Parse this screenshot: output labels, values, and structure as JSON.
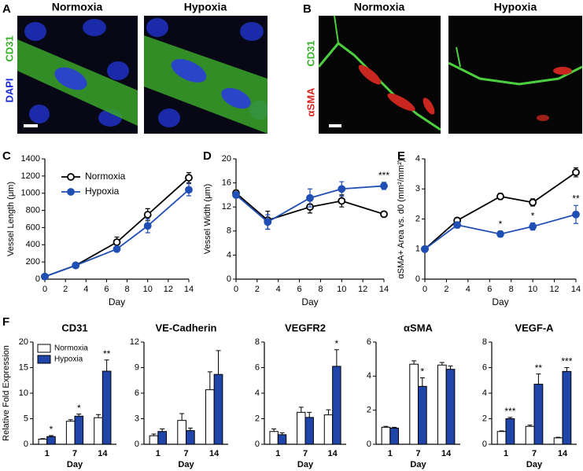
{
  "figure": {
    "letters": [
      "A",
      "B",
      "C",
      "D",
      "E",
      "F"
    ],
    "panel_a": {
      "titles": [
        "Normoxia",
        "Hypoxia"
      ],
      "stains": [
        "DAPI",
        "CD31"
      ]
    },
    "panel_b": {
      "titles": [
        "Normoxia",
        "Hypoxia"
      ],
      "stains": [
        "αSMA",
        "CD31"
      ]
    }
  },
  "chart_data": [
    {
      "type": "line",
      "x": [
        0,
        3,
        7,
        10,
        14
      ],
      "xlim": [
        0,
        14
      ],
      "xticks": [
        0,
        2,
        4,
        6,
        8,
        10,
        12,
        14
      ],
      "ylim": [
        0,
        1400
      ],
      "yticks": [
        0,
        200,
        400,
        600,
        800,
        1000,
        1200,
        1400
      ],
      "xlabel": "Day",
      "ylabel": "Vessel Length (μm)",
      "legend": "upper left",
      "series": [
        {
          "name": "Normoxia",
          "color": "#000000",
          "values": [
            30,
            160,
            430,
            750,
            1180
          ],
          "errors": [
            10,
            15,
            60,
            70,
            60
          ]
        },
        {
          "name": "Hypoxia",
          "color": "#1f4fb4",
          "values": [
            30,
            160,
            350,
            620,
            1040
          ],
          "errors": [
            10,
            15,
            30,
            80,
            70
          ]
        }
      ]
    },
    {
      "type": "line",
      "x": [
        0,
        3,
        7,
        10,
        14
      ],
      "xlim": [
        0,
        14
      ],
      "xticks": [
        0,
        2,
        4,
        6,
        8,
        10,
        12,
        14
      ],
      "ylim": [
        0,
        20
      ],
      "yticks": [
        0,
        4,
        8,
        12,
        16,
        20
      ],
      "xlabel": "Day",
      "ylabel": "Vessel Width (μm)",
      "annotations": [
        null,
        null,
        null,
        null,
        "***"
      ],
      "series": [
        {
          "color": "#000000",
          "values": [
            14.3,
            9.8,
            12,
            13,
            10.8
          ],
          "errors": [
            0.5,
            1.5,
            1.0,
            1.0,
            0.4
          ]
        },
        {
          "color": "#1f4fb4",
          "values": [
            14,
            9.5,
            13.5,
            15,
            15.5
          ],
          "errors": [
            0.5,
            1.2,
            1.5,
            1.2,
            0.6
          ]
        }
      ]
    },
    {
      "type": "line",
      "x": [
        0,
        3,
        7,
        10,
        14
      ],
      "xlim": [
        0,
        14
      ],
      "xticks": [
        0,
        2,
        4,
        6,
        8,
        10,
        12,
        14
      ],
      "ylim": [
        0,
        4
      ],
      "yticks": [
        0,
        1,
        2,
        3,
        4
      ],
      "xlabel": "Day",
      "ylabel": "αSMA+ Area vs. d0 (mm²/mm²)",
      "annotations": [
        null,
        null,
        "*",
        "*",
        "**"
      ],
      "series": [
        {
          "color": "#000000",
          "values": [
            1,
            1.95,
            2.75,
            2.55,
            3.55
          ],
          "errors": [
            0.05,
            0.05,
            0.1,
            0.12,
            0.15
          ]
        },
        {
          "color": "#1f4fb4",
          "values": [
            1,
            1.8,
            1.5,
            1.75,
            2.15
          ],
          "errors": [
            0.05,
            0.1,
            0.1,
            0.12,
            0.3
          ]
        }
      ]
    },
    {
      "type": "bar",
      "title": "CD31",
      "categories": [
        "1",
        "7",
        "14"
      ],
      "xlabel": "Day",
      "ylabel": "Relative Fold Expression",
      "legend": "upper left",
      "ylim": [
        0,
        20
      ],
      "yticks": [
        0,
        5,
        10,
        15,
        20
      ],
      "annotations": [
        "*",
        "*",
        "**"
      ],
      "series": [
        {
          "name": "Normoxia",
          "color": "#ffffff",
          "values": [
            1,
            4.5,
            5.2
          ],
          "errors": [
            0.1,
            0.3,
            0.6
          ]
        },
        {
          "name": "Hypoxia",
          "color": "#1f45a8",
          "values": [
            1.5,
            5.5,
            14.3
          ],
          "errors": [
            0.2,
            0.4,
            2.2
          ]
        }
      ]
    },
    {
      "type": "bar",
      "title": "VE-Cadherin",
      "categories": [
        "1",
        "7",
        "14"
      ],
      "xlabel": "Day",
      "ylim": [
        0,
        12
      ],
      "yticks": [
        0,
        3,
        6,
        9,
        12
      ],
      "series": [
        {
          "color": "#ffffff",
          "values": [
            1,
            2.8,
            6.4
          ],
          "errors": [
            0.2,
            0.8,
            2.1
          ]
        },
        {
          "color": "#1f45a8",
          "values": [
            1.5,
            1.6,
            8.2
          ],
          "errors": [
            0.3,
            0.3,
            2.8
          ]
        }
      ]
    },
    {
      "type": "bar",
      "title": "VEGFR2",
      "categories": [
        "1",
        "7",
        "14"
      ],
      "xlabel": "Day",
      "ylim": [
        0,
        8
      ],
      "yticks": [
        0,
        2,
        4,
        6,
        8
      ],
      "annotations": [
        null,
        null,
        "*"
      ],
      "series": [
        {
          "color": "#ffffff",
          "values": [
            1,
            2.5,
            2.3
          ],
          "errors": [
            0.2,
            0.4,
            0.4
          ]
        },
        {
          "color": "#1f45a8",
          "values": [
            0.75,
            2.1,
            6.1
          ],
          "errors": [
            0.15,
            0.4,
            1.3
          ]
        }
      ]
    },
    {
      "type": "bar",
      "title": "αSMA",
      "categories": [
        "1",
        "7",
        "14"
      ],
      "xlabel": "Day",
      "ylim": [
        0,
        6
      ],
      "yticks": [
        0,
        2,
        4,
        6
      ],
      "annotations": [
        null,
        "*",
        null
      ],
      "series": [
        {
          "color": "#ffffff",
          "values": [
            1,
            4.7,
            4.65
          ],
          "errors": [
            0.05,
            0.2,
            0.15
          ]
        },
        {
          "color": "#1f45a8",
          "values": [
            0.95,
            3.4,
            4.4
          ],
          "errors": [
            0.05,
            0.5,
            0.2
          ]
        }
      ]
    },
    {
      "type": "bar",
      "title": "VEGF-A",
      "categories": [
        "1",
        "7",
        "14"
      ],
      "xlabel": "Day",
      "ylim": [
        0,
        8
      ],
      "yticks": [
        0,
        2,
        4,
        6,
        8
      ],
      "annotations": [
        "***",
        "**",
        "***"
      ],
      "series": [
        {
          "color": "#ffffff",
          "values": [
            1,
            1.4,
            0.5
          ],
          "errors": [
            0.05,
            0.1,
            0.05
          ]
        },
        {
          "color": "#1f45a8",
          "values": [
            2,
            4.7,
            5.7
          ],
          "errors": [
            0.1,
            0.8,
            0.3
          ]
        }
      ]
    }
  ]
}
